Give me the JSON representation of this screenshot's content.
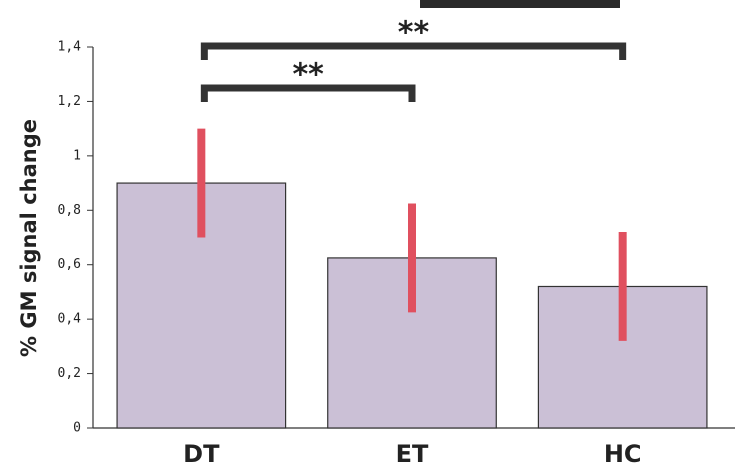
{
  "chart_data": {
    "type": "bar",
    "y_label": "% GM signal change",
    "categories": [
      "DT",
      "ET",
      "HC"
    ],
    "values": [
      0.9,
      0.625,
      0.52
    ],
    "errors": [
      0.2,
      0.2,
      0.2
    ],
    "color": "#cbc0d6",
    "error_color": "#e0505f",
    "ylim": [
      0,
      1.4
    ],
    "yticks": [
      0,
      {
        "value": 0.2,
        "label": "0,2"
      },
      {
        "value": 0.4,
        "label": "0,4"
      },
      {
        "value": 0.6,
        "label": "0,6"
      },
      {
        "value": 0.8,
        "label": "0,8"
      },
      1,
      {
        "value": 1.2,
        "label": "1,2"
      },
      {
        "value": 1.4,
        "label": "1,4"
      }
    ],
    "annotations": [
      {
        "text": "**",
        "from": "DT",
        "to": "ET"
      },
      {
        "text": "**",
        "from": "DT",
        "to": "HC"
      }
    ]
  }
}
